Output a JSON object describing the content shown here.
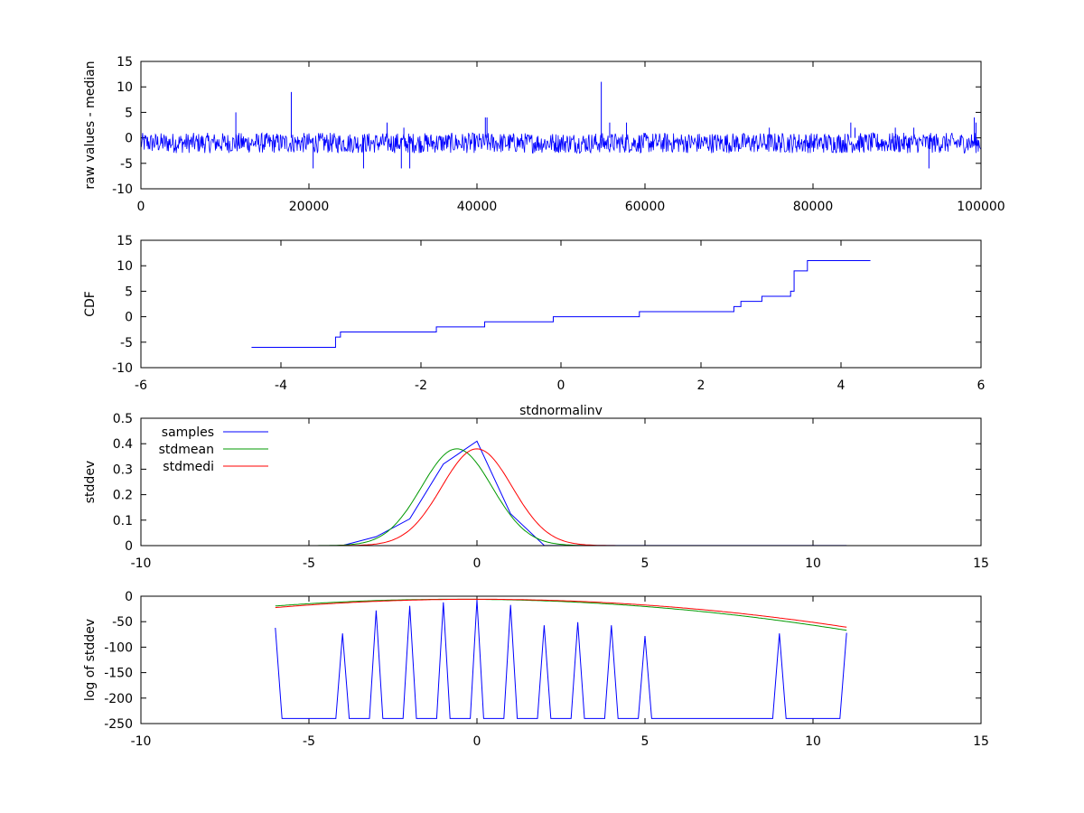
{
  "chart_data": [
    {
      "type": "line",
      "title": "",
      "xlabel": "",
      "ylabel": "raw values - median",
      "xlim": [
        0,
        100000
      ],
      "ylim": [
        -10,
        15
      ],
      "xticks": [
        0,
        20000,
        40000,
        60000,
        80000,
        100000
      ],
      "yticks": [
        -10,
        -5,
        0,
        5,
        10,
        15
      ],
      "grid": false,
      "noise_range": [
        -3,
        1
      ],
      "series": [
        {
          "color": "#0000ff",
          "spikes": [
            {
              "x": 11300,
              "y": 5
            },
            {
              "x": 17900,
              "y": 9
            },
            {
              "x": 20500,
              "y": -6
            },
            {
              "x": 26500,
              "y": -6
            },
            {
              "x": 29300,
              "y": 3
            },
            {
              "x": 31000,
              "y": -6
            },
            {
              "x": 31300,
              "y": 2
            },
            {
              "x": 32000,
              "y": -6
            },
            {
              "x": 41000,
              "y": 4
            },
            {
              "x": 41200,
              "y": 4
            },
            {
              "x": 54800,
              "y": 11
            },
            {
              "x": 55800,
              "y": 3
            },
            {
              "x": 57800,
              "y": 3
            },
            {
              "x": 74800,
              "y": 2
            },
            {
              "x": 84500,
              "y": 3
            },
            {
              "x": 85000,
              "y": 2
            },
            {
              "x": 89800,
              "y": 2
            },
            {
              "x": 92000,
              "y": 2
            },
            {
              "x": 93800,
              "y": -6
            },
            {
              "x": 99200,
              "y": 4
            },
            {
              "x": 99400,
              "y": 3
            }
          ]
        }
      ]
    },
    {
      "type": "line",
      "title": "",
      "xlabel": "stdnormalinv",
      "ylabel": "CDF",
      "xlim": [
        -6,
        6
      ],
      "ylim": [
        -10,
        15
      ],
      "xticks": [
        -6,
        -4,
        -2,
        0,
        2,
        4,
        6
      ],
      "yticks": [
        -10,
        -5,
        0,
        5,
        10,
        15
      ],
      "grid": false,
      "series": [
        {
          "color": "#0000ff",
          "steps": [
            [
              -4.42,
              -6
            ],
            [
              -3.22,
              -4
            ],
            [
              -3.15,
              -3
            ],
            [
              -1.78,
              -2
            ],
            [
              -1.09,
              -1
            ],
            [
              -0.11,
              0
            ],
            [
              1.12,
              1
            ],
            [
              2.47,
              2
            ],
            [
              2.57,
              3
            ],
            [
              2.87,
              4
            ],
            [
              3.28,
              5
            ],
            [
              3.33,
              9
            ],
            [
              3.52,
              11
            ],
            [
              4.42,
              11
            ]
          ]
        }
      ]
    },
    {
      "type": "line",
      "title": "",
      "xlabel": "",
      "ylabel": "stddev",
      "xlim": [
        -10,
        15
      ],
      "ylim": [
        0,
        0.5
      ],
      "xticks": [
        -10,
        -5,
        0,
        5,
        10,
        15
      ],
      "yticks": [
        0,
        0.1,
        0.2,
        0.3,
        0.4,
        0.5
      ],
      "ytick_labels": [
        "0",
        "0.1",
        "0.2",
        "0.3",
        "0.4",
        "0.5"
      ],
      "grid": false,
      "legend": "top-left",
      "gauss_range": [
        -6,
        11
      ],
      "series": [
        {
          "name": "samples",
          "color": "#0000ff",
          "x": [
            -6,
            -4,
            -3,
            -2,
            -1,
            0,
            1,
            2,
            3,
            4,
            5,
            9,
            11
          ],
          "values": [
            0,
            0.0005,
            0.035,
            0.105,
            0.32,
            0.41,
            0.125,
            0.001,
            0.0005,
            0.0004,
            0.0003,
            0.0003,
            0.0005
          ]
        },
        {
          "name": "stdmean",
          "color": "#009900",
          "mean": -0.6,
          "sd": 1.05
        },
        {
          "name": "stdmedi",
          "color": "#ff0000",
          "mean": 0,
          "sd": 1.05
        }
      ]
    },
    {
      "type": "line",
      "title": "",
      "xlabel": "",
      "ylabel": "log of stddev",
      "xlim": [
        -10,
        15
      ],
      "ylim": [
        -250,
        0
      ],
      "xticks": [
        -10,
        -5,
        0,
        5,
        10,
        15
      ],
      "yticks": [
        -250,
        -200,
        -150,
        -100,
        -50,
        0
      ],
      "grid": false,
      "floor": -240,
      "gauss_range": [
        -6,
        11
      ],
      "series": [
        {
          "name": "samples",
          "color": "#0000ff",
          "x": [
            -6,
            -4,
            -3,
            -2,
            -1,
            0,
            1,
            2,
            3,
            4,
            5,
            9,
            11
          ],
          "values": [
            -62,
            -73,
            -28,
            -19,
            -12,
            -7,
            -17,
            -57,
            -51,
            -57,
            -78,
            -73,
            -72
          ]
        },
        {
          "name": "stdmean",
          "color": "#009900",
          "mean": -0.6,
          "sd": 1.05,
          "floor": -240
        },
        {
          "name": "stdmedi",
          "color": "#ff0000",
          "mean": 0,
          "sd": 1.05,
          "floor": -240
        }
      ]
    }
  ]
}
